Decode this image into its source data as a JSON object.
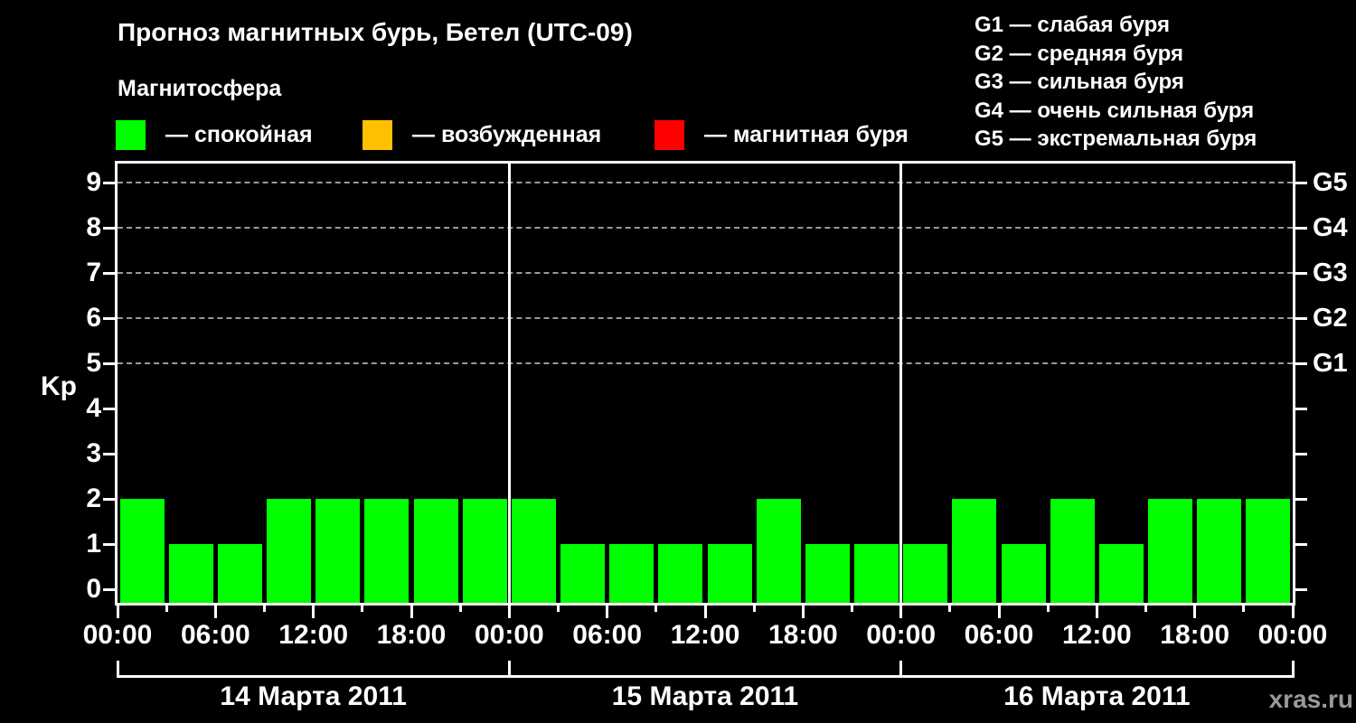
{
  "header": {
    "title": "Прогноз магнитных бурь, Бетел (UTC-09)",
    "subtitle": "Магнитосфера"
  },
  "legend": {
    "items": [
      {
        "name": "quiet",
        "color": "#00ff00",
        "label": "— спокойная"
      },
      {
        "name": "excited",
        "color": "#ffc000",
        "label": "— возбужденная"
      },
      {
        "name": "storm",
        "color": "#ff0000",
        "label": "— магнитная буря"
      }
    ]
  },
  "storm_scale": {
    "lines": [
      "G1 — слабая буря",
      "G2 — средняя буря",
      "G3 — сильная буря",
      "G4 — очень сильная буря",
      "G5 — экстремальная буря"
    ]
  },
  "watermark": "xras.ru",
  "chart_data": {
    "type": "bar",
    "title": "Прогноз магнитных бурь, Бетел (UTC-09)",
    "ylabel": "Kp",
    "ylim": [
      0,
      9
    ],
    "yticks": [
      0,
      1,
      2,
      3,
      4,
      5,
      6,
      7,
      8,
      9
    ],
    "grid_kp": [
      5,
      6,
      7,
      8,
      9
    ],
    "grid": "dashed-horizontal",
    "right_axis": [
      {
        "kp": 5,
        "label": "G1"
      },
      {
        "kp": 6,
        "label": "G2"
      },
      {
        "kp": 7,
        "label": "G3"
      },
      {
        "kp": 8,
        "label": "G4"
      },
      {
        "kp": 9,
        "label": "G5"
      }
    ],
    "x_tick_labels": [
      "00:00",
      "06:00",
      "12:00",
      "18:00",
      "00:00",
      "06:00",
      "12:00",
      "18:00",
      "00:00",
      "06:00",
      "12:00",
      "18:00",
      "00:00"
    ],
    "hours_per_bar": 3,
    "hours_total": 72,
    "colors": {
      "quiet": "#00ff00",
      "excited": "#ffc000",
      "storm": "#ff0000"
    },
    "color_rule": {
      "excited_at_kp": 4,
      "storm_at_kp": 5
    },
    "days": [
      {
        "date": "14 Марта 2011",
        "kp": [
          2,
          1,
          1,
          2,
          2,
          2,
          2,
          2
        ]
      },
      {
        "date": "15 Марта 2011",
        "kp": [
          2,
          1,
          1,
          1,
          1,
          2,
          1,
          1
        ]
      },
      {
        "date": "16 Марта 2011",
        "kp": [
          1,
          2,
          1,
          2,
          1,
          2,
          2,
          2
        ]
      }
    ],
    "legend_position": "top-left"
  }
}
